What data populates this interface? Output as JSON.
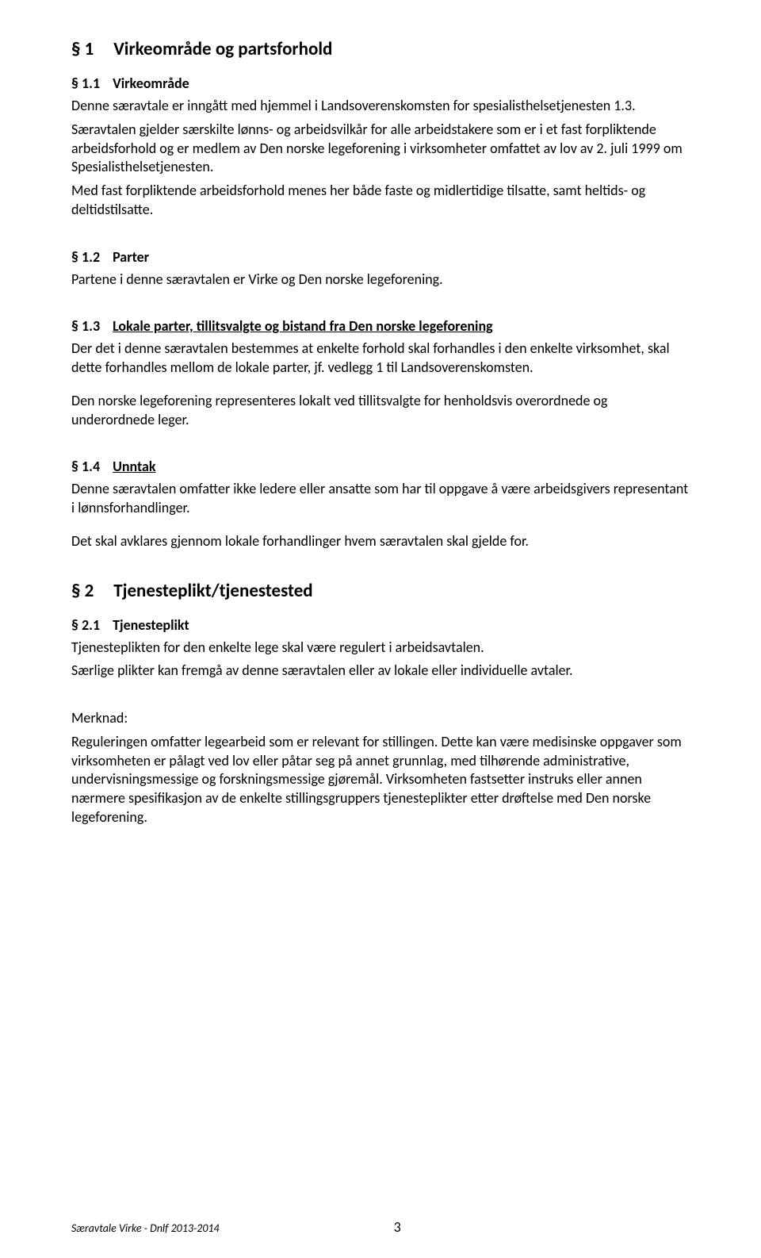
{
  "s1": {
    "heading_num": "§ 1",
    "heading_title": "Virkeområde og partsforhold",
    "s1_1": {
      "num": "§ 1.1",
      "title": "Virkeområde",
      "p1": "Denne særavtale er inngått med hjemmel i Landsoverenskomsten for spesialisthelsetjenesten 1.3.",
      "p2": "Særavtalen gjelder særskilte lønns- og arbeidsvilkår for alle arbeidstakere som er i et fast forpliktende arbeidsforhold og er medlem av Den norske legeforening i virksomheter omfattet av lov av 2. juli 1999 om Spesialisthelsetjenesten.",
      "p3": "Med fast forpliktende arbeidsforhold menes her både faste og midlertidige tilsatte, samt heltids- og deltidstilsatte."
    },
    "s1_2": {
      "num": "§ 1.2",
      "title": "Parter",
      "p1": "Partene i denne særavtalen er Virke og Den norske legeforening."
    },
    "s1_3": {
      "num": "§ 1.3",
      "title": "Lokale parter, tillitsvalgte og bistand fra Den norske legeforening",
      "p1": "Der det i denne særavtalen bestemmes at enkelte forhold skal forhandles i den enkelte virksomhet, skal dette forhandles mellom de lokale parter, jf. vedlegg 1 til Landsoverenskomsten.",
      "p2": "Den norske legeforening representeres lokalt ved tillitsvalgte for henholdsvis overordnede og underordnede leger."
    },
    "s1_4": {
      "num": "§ 1.4",
      "title": "Unntak",
      "p1": "Denne særavtalen omfatter ikke ledere eller ansatte som har til oppgave å være arbeidsgivers representant i lønnsforhandlinger.",
      "p2": "Det skal avklares gjennom lokale forhandlinger hvem særavtalen skal gjelde for."
    }
  },
  "s2": {
    "heading_num": "§ 2",
    "heading_title": "Tjenesteplikt/tjenestested",
    "s2_1": {
      "num": "§ 2.1",
      "title": "Tjenesteplikt",
      "p1": "Tjenesteplikten for den enkelte lege skal være regulert i arbeidsavtalen.",
      "p2": "Særlige plikter kan fremgå av denne særavtalen eller av lokale eller individuelle avtaler.",
      "merknad_label": "Merknad:",
      "merknad_body": "Reguleringen omfatter legearbeid som er relevant for stillingen. Dette kan være medisinske oppgaver som virksomheten er pålagt ved lov eller påtar seg på annet grunnlag, med tilhørende administrative, undervisningsmessige og forskningsmessige gjøremål. Virksomheten fastsetter instruks eller annen nærmere spesifikasjon av de enkelte stillingsgruppers tjenesteplikter etter drøftelse med Den norske legeforening."
    }
  },
  "footer": {
    "left": "Særavtale Virke  - Dnlf  2013-2014",
    "page": "3"
  }
}
